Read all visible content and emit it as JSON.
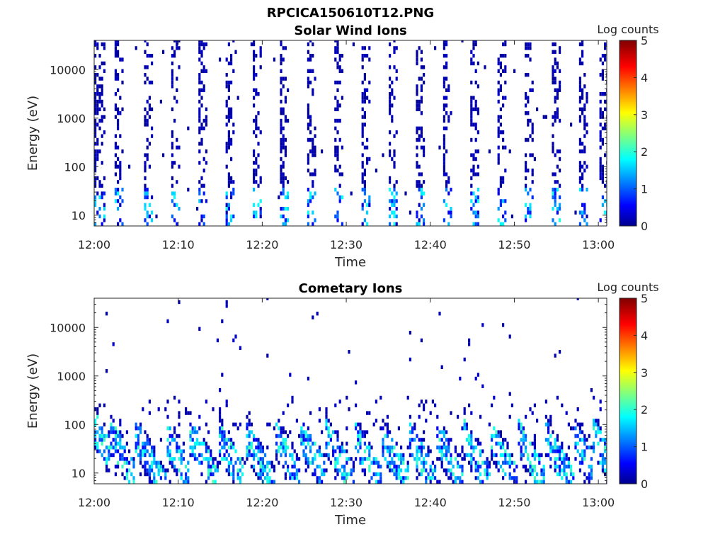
{
  "figure_title": "RPCICA150610T12.PNG",
  "chart_data": [
    {
      "type": "heatmap",
      "title": "Solar Wind Ions",
      "xlabel": "Time",
      "ylabel": "Energy (eV)",
      "x_ticks": [
        "12:00",
        "12:10",
        "12:20",
        "12:30",
        "12:40",
        "12:50",
        "13:00"
      ],
      "x_range": [
        "12:00",
        "13:01"
      ],
      "y_scale": "log",
      "y_ticks": [
        10,
        100,
        1000,
        10000
      ],
      "y_tick_labels": [
        "10",
        "100",
        "1000",
        "10000"
      ],
      "y_range": [
        6,
        40000
      ],
      "colorbar": {
        "label": "Log counts",
        "ticks": [
          "0",
          "1",
          "2",
          "3",
          "4",
          "5"
        ],
        "range": [
          0,
          5
        ],
        "colormap": "jet"
      },
      "scan_start_minutes": [
        0.2,
        2.4,
        5.7,
        9.0,
        12.3,
        15.5,
        18.7,
        22.0,
        25.2,
        28.5,
        31.7,
        34.9,
        38.2,
        41.4,
        44.7,
        47.9,
        51.2,
        54.4,
        57.6,
        60.0
      ]
    },
    {
      "type": "heatmap",
      "title": "Cometary Ions",
      "xlabel": "Time",
      "ylabel": "Energy (eV)",
      "x_ticks": [
        "12:00",
        "12:10",
        "12:20",
        "12:30",
        "12:40",
        "12:50",
        "13:00"
      ],
      "x_range": [
        "12:00",
        "13:01"
      ],
      "y_scale": "log",
      "y_ticks": [
        10,
        100,
        1000,
        10000
      ],
      "y_tick_labels": [
        "10",
        "100",
        "1000",
        "10000"
      ],
      "y_range": [
        6,
        40000
      ],
      "colorbar": {
        "label": "Log counts",
        "ticks": [
          "0",
          "1",
          "2",
          "3",
          "4",
          "5"
        ],
        "range": [
          0,
          5
        ],
        "colormap": "jet"
      },
      "scan_start_minutes": [
        0.5,
        1.8,
        4.8,
        8.4,
        11.3,
        14.6,
        17.8,
        21.4,
        24.5,
        27.5,
        30.8,
        34.0,
        37.3,
        40.6,
        43.8,
        47.0,
        50.3,
        53.5,
        56.9,
        59.3
      ]
    }
  ]
}
